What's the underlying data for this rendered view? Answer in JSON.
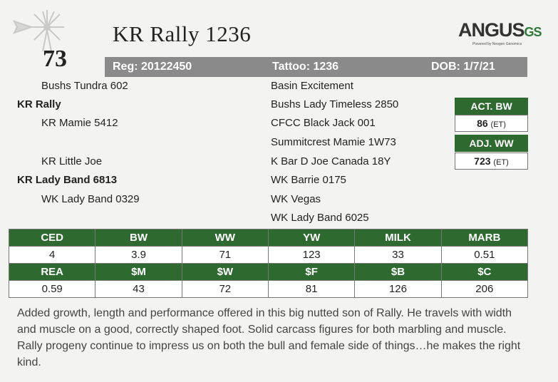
{
  "lot_number": "73",
  "animal_name": "KR Rally 1236",
  "logo": {
    "main": "ANGUS",
    "accent": "GS",
    "tagline": "Powered by Neogen Genomics"
  },
  "info_bar": {
    "reg": "Reg: 20122450",
    "tattoo": "Tattoo: 1236",
    "dob": "DOB: 1/7/21"
  },
  "pedigree": {
    "sire_sire": "Bushs Tundra 602",
    "sire": "KR Rally",
    "sire_dam": "KR Mamie 5412",
    "dam_sire": "KR Little Joe",
    "dam": "KR Lady Band 6813",
    "dam_dam": "WK Lady Band 0329",
    "g1": "Basin Excitement",
    "g2": "Bushs Lady Timeless 2850",
    "g3": "CFCC Black Jack 001",
    "g4": "Summitcrest Mamie 1W73",
    "g5": "K Bar D Joe Canada 18Y",
    "g6": "WK Barrie 0175",
    "g7": "WK Vegas",
    "g8": "WK Lady Band 6025"
  },
  "weights": {
    "act_bw_label": "ACT. BW",
    "act_bw_value": "86",
    "act_bw_note": "(ET)",
    "adj_ww_label": "ADJ. WW",
    "adj_ww_value": "723",
    "adj_ww_note": "(ET)"
  },
  "epd": {
    "row1_headers": [
      "CED",
      "BW",
      "WW",
      "YW",
      "MILK",
      "MARB"
    ],
    "row1_values": [
      "4",
      "3.9",
      "71",
      "123",
      "33",
      "0.51"
    ],
    "row2_headers": [
      "REA",
      "$M",
      "$W",
      "$F",
      "$B",
      "$C"
    ],
    "row2_values": [
      "0.59",
      "43",
      "72",
      "81",
      "126",
      "206"
    ]
  },
  "description": "Added growth, length and performance offered in this big nutted son of Rally. He travels with width and muscle on a good, correctly shaped foot. Solid carcass figures for both marbling and muscle. Rally progeny continue to impress us on both the bull and female side of things…he makes the right kind.",
  "colors": {
    "green": "#2e6a30",
    "grey_bar": "#8a8a8a",
    "background": "#f3f3f1"
  }
}
